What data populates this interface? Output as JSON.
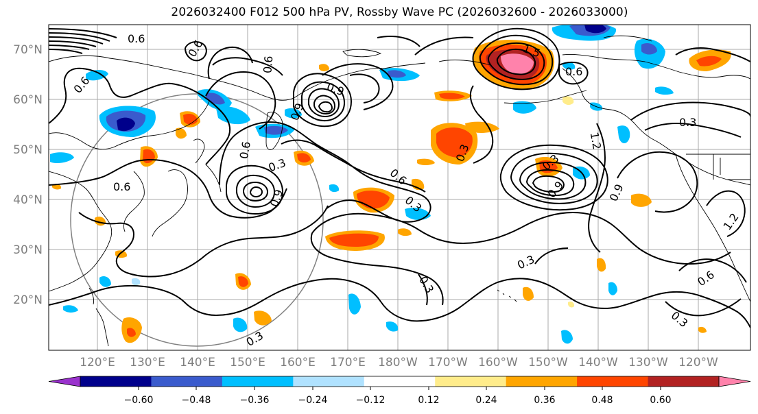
{
  "title": "2026032400 F012 500 hPa PV, Rossby Wave PC (2026032600 - 2026033000)",
  "map": {
    "lat_labels": [
      "70°N",
      "60°N",
      "50°N",
      "40°N",
      "30°N",
      "20°N"
    ],
    "lon_labels": [
      "120°E",
      "130°E",
      "140°E",
      "150°E",
      "160°E",
      "170°E",
      "180°W",
      "170°W",
      "160°W",
      "150°W",
      "140°W",
      "130°W",
      "120°W"
    ],
    "contour_labels": [
      "0.6",
      "0.6",
      "0.6",
      "0.6",
      "0.6",
      "0.6",
      "0.9",
      "0.9",
      "0.9",
      "0.3",
      "0.3",
      "0.3",
      "0.3",
      "0.3",
      "0.6",
      "0.3",
      "0.3",
      "1.2",
      "1.5",
      "0.9",
      "0.6",
      "0.6",
      "0.9",
      "0.3",
      "0.3",
      "1.2"
    ]
  },
  "colorbar": {
    "colors": [
      "#9a32cd",
      "#00008b",
      "#3a5bcd",
      "#00bfff",
      "#b0e2ff",
      "#ffffff",
      "#ffec8b",
      "#ffa500",
      "#ff4500",
      "#b22222",
      "#ff82ab"
    ],
    "tick_labels": [
      "−0.60",
      "−0.48",
      "−0.36",
      "−0.24",
      "−0.12",
      "0.12",
      "0.24",
      "0.36",
      "0.48",
      "0.60"
    ]
  }
}
